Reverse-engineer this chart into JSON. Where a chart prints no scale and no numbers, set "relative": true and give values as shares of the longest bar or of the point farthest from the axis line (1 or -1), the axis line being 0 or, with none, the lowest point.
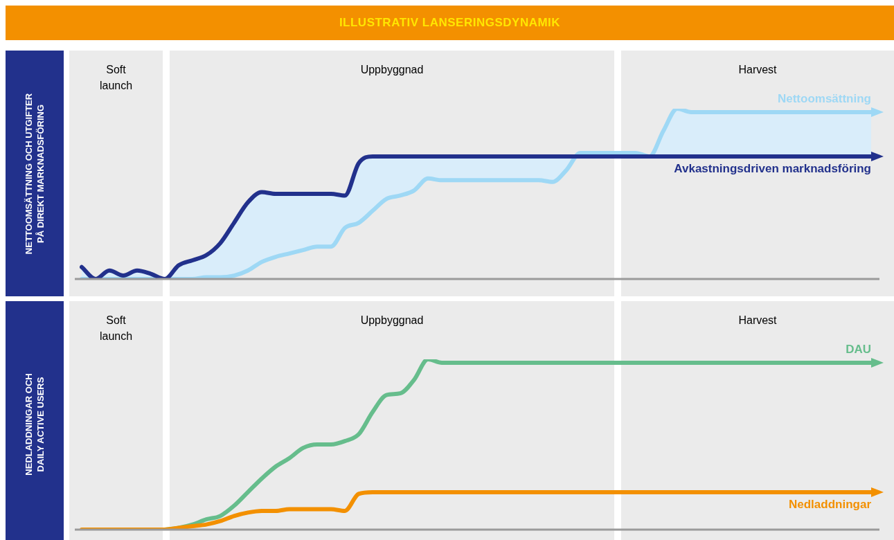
{
  "chart_data": [
    {
      "type": "line",
      "title": "ILLUSTRATIV LANSERINGSDYNAMIK",
      "ylabel": "NETTOOMSÄTTNING OCH UTGIFTER PÅ DIREKT MARKNADSFÖRING",
      "relative": true,
      "marker": "none",
      "line_style": "solid",
      "annotations": [
        "Soft launch",
        "Uppbyggnad",
        "Harvest"
      ],
      "categories": [
        null,
        null,
        null,
        null,
        null,
        null,
        null,
        null,
        null,
        null,
        null,
        null,
        null,
        null,
        null,
        null,
        null,
        null,
        null,
        null,
        null,
        null,
        null,
        null,
        null,
        null,
        null,
        null,
        null,
        null,
        null,
        null,
        null,
        null,
        null,
        null,
        null,
        null,
        null,
        null,
        null,
        null,
        null,
        null,
        null,
        null,
        null,
        null,
        null,
        null,
        null,
        null,
        null,
        null,
        null,
        null,
        null,
        null
      ],
      "series": [
        {
          "name": "Nettoomsättning",
          "color": "#9ed8f5",
          "values": [
            0,
            0,
            0,
            0,
            0,
            0,
            0,
            0,
            0,
            0.01,
            0.01,
            0.02,
            0.05,
            0.1,
            0.13,
            0.15,
            0.17,
            0.19,
            0.19,
            0.3,
            0.33,
            0.4,
            0.47,
            0.49,
            0.52,
            0.59,
            0.58,
            0.58,
            0.58,
            0.58,
            0.58,
            0.58,
            0.58,
            0.58,
            0.57,
            0.64,
            0.74,
            0.74,
            0.74,
            0.74,
            0.74,
            0.72,
            0.87,
            1,
            0.98,
            0.98,
            0.98,
            0.98,
            0.98,
            0.98,
            0.98,
            0.98,
            0.98,
            0.98,
            0.98,
            0.98,
            0.98,
            0.98
          ]
        },
        {
          "name": "Avkastningsdriven marknadsföring",
          "color": "#22318c",
          "values": [
            0.07,
            0,
            0.05,
            0.02,
            0.05,
            0.03,
            0,
            0.08,
            0.11,
            0.14,
            0.21,
            0.33,
            0.45,
            0.51,
            0.5,
            0.5,
            0.5,
            0.5,
            0.5,
            0.49,
            0.68,
            0.72,
            0.72,
            0.72,
            0.72,
            0.72,
            0.72,
            0.72,
            0.72,
            0.72,
            0.72,
            0.72,
            0.72,
            0.72,
            0.72,
            0.72,
            0.72,
            0.72,
            0.72,
            0.72,
            0.72,
            0.72,
            0.72,
            0.72,
            0.72,
            0.72,
            0.72,
            0.72,
            0.72,
            0.72,
            0.72,
            0.72,
            0.72,
            0.72,
            0.72,
            0.72,
            0.72,
            0.72
          ]
        }
      ]
    },
    {
      "type": "line",
      "ylabel": "NEDLADDNINGAR OCH DAILY ACTIVE USERS",
      "relative": true,
      "marker": "none",
      "line_style": "solid",
      "annotations": [
        "Soft launch",
        "Uppbyggnad",
        "Harvest"
      ],
      "categories": [
        null,
        null,
        null,
        null,
        null,
        null,
        null,
        null,
        null,
        null,
        null,
        null,
        null,
        null,
        null,
        null,
        null,
        null,
        null,
        null,
        null,
        null,
        null,
        null,
        null,
        null,
        null,
        null,
        null,
        null,
        null,
        null,
        null,
        null,
        null,
        null,
        null,
        null,
        null,
        null,
        null,
        null,
        null,
        null,
        null,
        null,
        null,
        null,
        null,
        null,
        null,
        null,
        null,
        null,
        null,
        null,
        null,
        null
      ],
      "series": [
        {
          "name": "DAU",
          "color": "#66bd8c",
          "values": [
            null,
            null,
            null,
            null,
            null,
            null,
            0,
            0.01,
            0.03,
            0.06,
            0.08,
            0.14,
            0.22,
            0.3,
            0.37,
            0.42,
            0.48,
            0.5,
            0.5,
            0.52,
            0.56,
            0.69,
            0.79,
            0.8,
            0.88,
            1,
            0.98,
            0.98,
            0.98,
            0.98,
            0.98,
            0.98,
            0.98,
            0.98,
            0.98,
            0.98,
            0.98,
            0.98,
            0.98,
            0.98,
            0.98,
            0.98,
            0.98,
            0.98,
            0.98,
            0.98,
            0.98,
            0.98,
            0.98,
            0.98,
            0.98,
            0.98,
            0.98,
            0.98,
            0.98,
            0.98,
            0.98,
            0.98
          ]
        },
        {
          "name": "Nedladdningar",
          "color": "#f39000",
          "values": [
            0,
            0,
            0,
            0,
            0,
            0,
            0,
            0.01,
            0.02,
            0.03,
            0.05,
            0.08,
            0.1,
            0.11,
            0.11,
            0.12,
            0.12,
            0.12,
            0.12,
            0.11,
            0.21,
            0.22,
            0.22,
            0.22,
            0.22,
            0.22,
            0.22,
            0.22,
            0.22,
            0.22,
            0.22,
            0.22,
            0.22,
            0.22,
            0.22,
            0.22,
            0.22,
            0.22,
            0.22,
            0.22,
            0.22,
            0.22,
            0.22,
            0.22,
            0.22,
            0.22,
            0.22,
            0.22,
            0.22,
            0.22,
            0.22,
            0.22,
            0.22,
            0.22,
            0.22,
            0.22,
            0.22,
            0.22
          ]
        }
      ]
    }
  ]
}
